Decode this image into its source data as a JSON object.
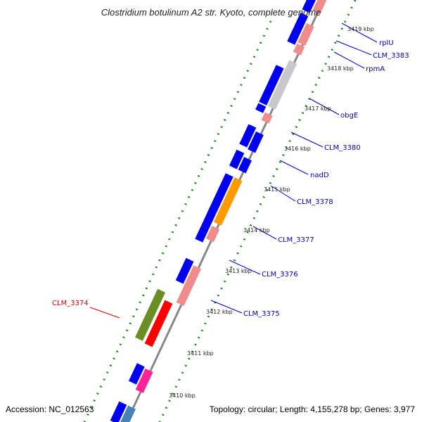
{
  "title": "Clostridium botulinum A2 str. Kyoto, complete genome",
  "accession": "Accession: NC_012563",
  "topology": "Topology: circular; Length: 4,155,278 bp; Genes: 3,977",
  "colors": {
    "backbone": "#888888",
    "tick_dots": "#1a8a1a",
    "blue_gene": "#0000ee",
    "pink_gene": "#f08c8c",
    "orange_gene": "#ff9a00",
    "grey_gene": "#c8c8cc",
    "olive_gene": "#6b8e23",
    "red_gene": "#ff0000",
    "magenta_gene": "#ff2299",
    "steel_gene": "#4682b4",
    "label_blue": "#0000cc",
    "label_red": "#dd0000"
  },
  "kbp_ticks": [
    "3419 kbp",
    "3418 kbp",
    "3417 kbp",
    "3416 kbp",
    "3415 kbp",
    "3414 kbp",
    "3413 kbp",
    "3412 kbp",
    "3411 kbp",
    "3410 kbp"
  ],
  "gene_labels": [
    {
      "text": "rplU",
      "color": "blue"
    },
    {
      "text": "CLM_3383",
      "color": "blue"
    },
    {
      "text": "rpmA",
      "color": "blue"
    },
    {
      "text": "obgE",
      "color": "blue"
    },
    {
      "text": "CLM_3380",
      "color": "blue"
    },
    {
      "text": "nadD",
      "color": "blue"
    },
    {
      "text": "CLM_3378",
      "color": "blue"
    },
    {
      "text": "CLM_3377",
      "color": "blue"
    },
    {
      "text": "CLM_3376",
      "color": "blue"
    },
    {
      "text": "CLM_3375",
      "color": "blue"
    },
    {
      "text": "CLM_3374",
      "color": "red"
    }
  ]
}
